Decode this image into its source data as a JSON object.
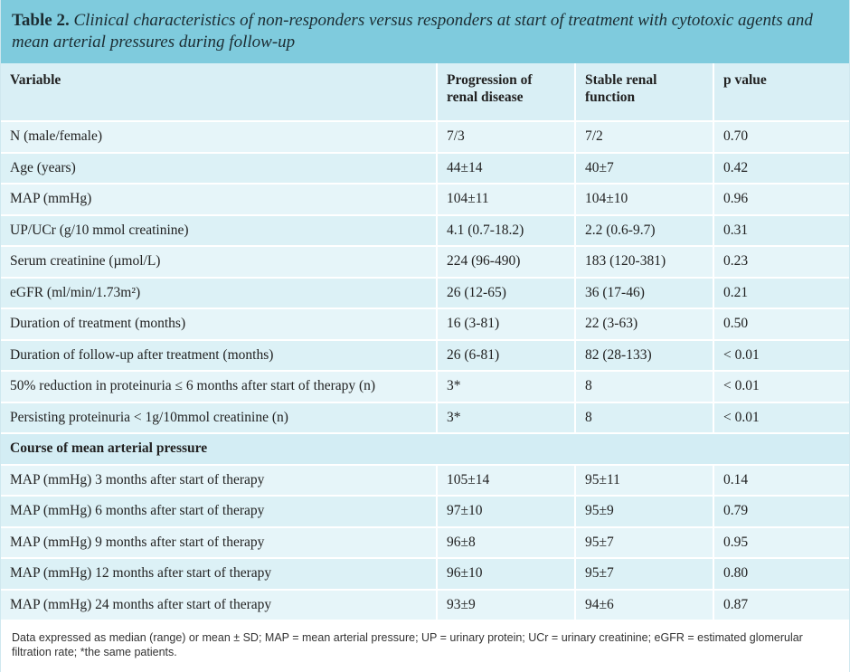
{
  "title": {
    "label": "Table 2.",
    "text": "Clinical characteristics of non-responders versus responders at start of treatment with cytotoxic agents and mean arterial pressures during follow-up"
  },
  "columns": [
    "Variable",
    "Progression of renal disease",
    "Stable renal function",
    "p value"
  ],
  "rows": [
    [
      "N (male/female)",
      "7/3",
      "7/2",
      "0.70"
    ],
    [
      "Age (years)",
      "44±14",
      "40±7",
      "0.42"
    ],
    [
      "MAP (mmHg)",
      "104±11",
      "104±10",
      "0.96"
    ],
    [
      "UP/UCr (g/10 mmol creatinine)",
      "4.1 (0.7-18.2)",
      "2.2 (0.6-9.7)",
      "0.31"
    ],
    [
      "Serum creatinine (µmol/L)",
      "224 (96-490)",
      "183 (120-381)",
      "0.23"
    ],
    [
      "eGFR (ml/min/1.73m²)",
      "26 (12-65)",
      "36 (17-46)",
      "0.21"
    ],
    [
      "Duration of treatment (months)",
      "16 (3-81)",
      "22 (3-63)",
      "0.50"
    ],
    [
      "Duration of follow-up after treatment (months)",
      "26 (6-81)",
      "82 (28-133)",
      "< 0.01"
    ],
    [
      "50% reduction in proteinuria ≤ 6 months after start of therapy (n)",
      "3*",
      "8",
      "< 0.01"
    ],
    [
      "Persisting proteinuria < 1g/10mmol creatinine (n)",
      "3*",
      "8",
      "< 0.01"
    ]
  ],
  "section_title": "Course of mean arterial pressure",
  "section_rows": [
    [
      "MAP (mmHg) 3 months after start of therapy",
      "105±14",
      "95±11",
      "0.14"
    ],
    [
      "MAP (mmHg) 6 months after start of therapy",
      "97±10",
      "95±9",
      "0.79"
    ],
    [
      "MAP (mmHg) 9 months after start of therapy",
      "96±8",
      "95±7",
      "0.95"
    ],
    [
      "MAP (mmHg) 12 months after start of therapy",
      "96±10",
      "95±7",
      "0.80"
    ],
    [
      "MAP (mmHg) 24 months after start of therapy",
      "93±9",
      "94±6",
      "0.87"
    ]
  ],
  "footnote": "Data expressed as median (range) or mean ± SD; MAP = mean arterial pressure; UP = urinary protein; UCr = urinary creatinine; eGFR = estimated glomerular filtration rate; *the same patients."
}
